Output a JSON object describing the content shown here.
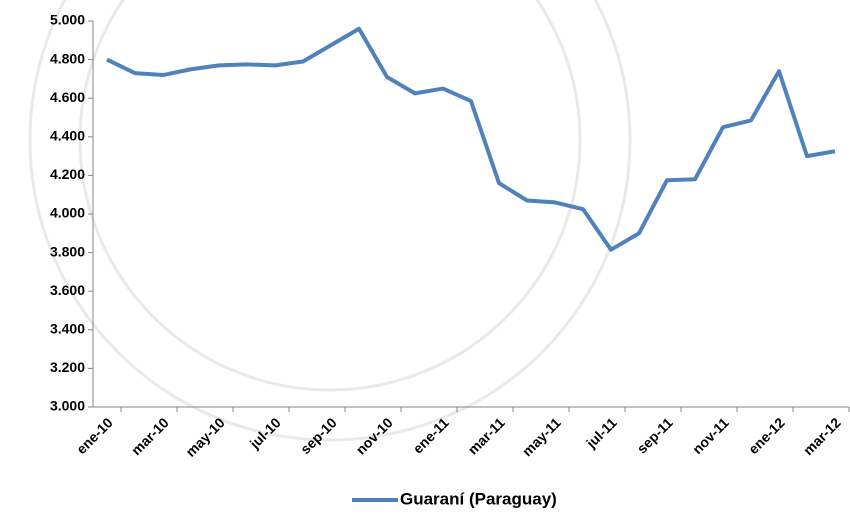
{
  "chart_data": {
    "type": "line",
    "categories": [
      "ene-10",
      null,
      "mar-10",
      null,
      "may-10",
      null,
      "jul-10",
      null,
      "sep-10",
      null,
      "nov-10",
      null,
      "ene-11",
      null,
      "mar-11",
      null,
      "may-11",
      null,
      "jul-11",
      null,
      "sep-11",
      null,
      "nov-11",
      null,
      "ene-12",
      null,
      "mar-12"
    ],
    "series": [
      {
        "name": "Guaraní (Paraguay)",
        "color": "#4f81bd",
        "values": [
          4800,
          4730,
          4720,
          4750,
          4770,
          4775,
          4770,
          4790,
          4875,
          4960,
          4710,
          4625,
          4650,
          4585,
          4160,
          4070,
          4060,
          4025,
          3815,
          3900,
          4175,
          4180,
          4450,
          4485,
          4740,
          4300,
          4325
        ]
      }
    ],
    "ylim": [
      3000,
      5000
    ],
    "yticks": [
      {
        "value": 3000,
        "label": "3.000"
      },
      {
        "value": 3200,
        "label": "3.200"
      },
      {
        "value": 3400,
        "label": "3.400"
      },
      {
        "value": 3600,
        "label": "3.600"
      },
      {
        "value": 3800,
        "label": "3.800"
      },
      {
        "value": 4000,
        "label": "4.000"
      },
      {
        "value": 4200,
        "label": "4.200"
      },
      {
        "value": 4400,
        "label": "4.400"
      },
      {
        "value": 4600,
        "label": "4.600"
      },
      {
        "value": 4800,
        "label": "4.800"
      },
      {
        "value": 5000,
        "label": "5.000"
      }
    ],
    "grid": false,
    "legend": "bottom"
  }
}
